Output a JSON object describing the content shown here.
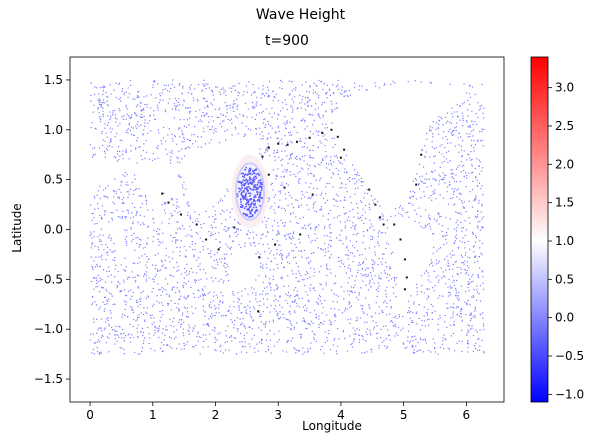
{
  "chart_data": {
    "type": "scatter",
    "suptitle": "Wave Height",
    "title": "t=900",
    "xlabel": "Longitude",
    "ylabel": "Latitude",
    "xlim": [
      -0.32,
      6.6
    ],
    "ylim": [
      -1.73,
      1.73
    ],
    "xticks": [
      0,
      1,
      2,
      3,
      4,
      5,
      6
    ],
    "yticks": [
      -1.5,
      -1.0,
      -0.5,
      0.0,
      0.5,
      1.0,
      1.5
    ],
    "xtick_labels": [
      "0",
      "1",
      "2",
      "3",
      "4",
      "5",
      "6"
    ],
    "ytick_labels": [
      "−1.5",
      "−1.0",
      "−0.5",
      "0.0",
      "0.5",
      "1.0",
      "1.5"
    ],
    "colorbar": {
      "colormap": "bwr",
      "vmin": -1.1,
      "vmax": 3.4,
      "ticks": [
        -1.0,
        -0.5,
        0.0,
        0.5,
        1.0,
        1.5,
        2.0,
        2.5,
        3.0
      ],
      "tick_labels": [
        "−1.0",
        "−0.5",
        "0.0",
        "0.5",
        "1.0",
        "1.5",
        "2.0",
        "2.5",
        "3.0"
      ]
    },
    "background_value": 0.0,
    "ring_feature": {
      "center": [
        2.55,
        0.38
      ],
      "radius_x": 0.26,
      "radius_y": 0.33,
      "ring_value": 1.3,
      "inner_value": -0.3
    },
    "coastline_points": [
      [
        2.75,
        0.73
      ],
      [
        2.85,
        0.82
      ],
      [
        3.0,
        0.86
      ],
      [
        3.15,
        0.85
      ],
      [
        3.3,
        0.88
      ],
      [
        3.5,
        0.92
      ],
      [
        3.7,
        0.97
      ],
      [
        3.85,
        1.0
      ],
      [
        3.95,
        0.93
      ],
      [
        4.05,
        0.8
      ],
      [
        4.0,
        0.72
      ],
      [
        4.45,
        0.4
      ],
      [
        4.55,
        0.25
      ],
      [
        4.62,
        0.12
      ],
      [
        4.68,
        0.05
      ],
      [
        4.85,
        0.05
      ],
      [
        4.95,
        -0.1
      ],
      [
        5.02,
        -0.3
      ],
      [
        5.05,
        -0.48
      ],
      [
        5.02,
        -0.6
      ],
      [
        5.2,
        0.45
      ],
      [
        5.28,
        0.75
      ],
      [
        1.15,
        0.36
      ],
      [
        1.25,
        0.27
      ],
      [
        1.45,
        0.15
      ],
      [
        1.7,
        0.05
      ],
      [
        1.85,
        -0.1
      ],
      [
        2.05,
        -0.2
      ],
      [
        2.3,
        0.02
      ],
      [
        2.7,
        -0.28
      ],
      [
        2.95,
        -0.15
      ],
      [
        3.35,
        -0.05
      ],
      [
        3.55,
        0.35
      ],
      [
        2.68,
        -0.82
      ],
      [
        2.85,
        0.55
      ],
      [
        3.1,
        0.42
      ]
    ]
  }
}
